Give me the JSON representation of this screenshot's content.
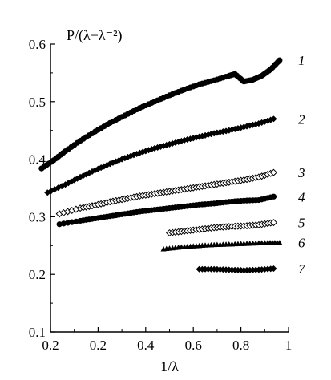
{
  "chart_data": {
    "type": "scatter",
    "ylabel": "P/(λ−λ⁻²)",
    "xlabel": "1/λ",
    "xlim": [
      0.2,
      1.0
    ],
    "ylim": [
      0.1,
      0.6
    ],
    "x_ticks": [
      "0.2",
      "0.2",
      "0.4",
      "0.6",
      "0.8",
      "1"
    ],
    "y_ticks": [
      "0.1",
      "0.2",
      "0.3",
      "0.4",
      "0.5",
      "0.6"
    ],
    "grid": false,
    "legend": "series numbers printed at right end of each curve",
    "series": [
      {
        "name": "1",
        "marker": "circle",
        "x": [
          0.17,
          0.21,
          0.25,
          0.3,
          0.35,
          0.4,
          0.45,
          0.5,
          0.55,
          0.6,
          0.65,
          0.7,
          0.75,
          0.8,
          0.82,
          0.85,
          0.88,
          0.91,
          0.94,
          0.97
        ],
        "y": [
          0.384,
          0.398,
          0.414,
          0.432,
          0.448,
          0.463,
          0.476,
          0.489,
          0.5,
          0.511,
          0.521,
          0.53,
          0.537,
          0.545,
          0.548,
          0.535,
          0.538,
          0.545,
          0.556,
          0.572
        ]
      },
      {
        "name": "2",
        "marker": "diamond",
        "x": [
          0.19,
          0.25,
          0.3,
          0.35,
          0.4,
          0.45,
          0.5,
          0.55,
          0.6,
          0.65,
          0.7,
          0.75,
          0.8,
          0.85,
          0.9,
          0.95
        ],
        "y": [
          0.342,
          0.356,
          0.369,
          0.381,
          0.392,
          0.402,
          0.411,
          0.419,
          0.426,
          0.433,
          0.439,
          0.445,
          0.45,
          0.456,
          0.462,
          0.47
        ]
      },
      {
        "name": "3",
        "marker": "open-diamond",
        "x": [
          0.23,
          0.3,
          0.35,
          0.4,
          0.45,
          0.5,
          0.55,
          0.6,
          0.65,
          0.7,
          0.75,
          0.8,
          0.85,
          0.9,
          0.95
        ],
        "y": [
          0.305,
          0.315,
          0.32,
          0.326,
          0.331,
          0.336,
          0.34,
          0.344,
          0.348,
          0.352,
          0.356,
          0.36,
          0.364,
          0.369,
          0.377
        ]
      },
      {
        "name": "4",
        "marker": "circle",
        "x": [
          0.23,
          0.3,
          0.35,
          0.4,
          0.45,
          0.5,
          0.55,
          0.6,
          0.65,
          0.7,
          0.75,
          0.8,
          0.85,
          0.9,
          0.95
        ],
        "y": [
          0.287,
          0.293,
          0.297,
          0.301,
          0.305,
          0.309,
          0.312,
          0.315,
          0.318,
          0.321,
          0.323,
          0.326,
          0.328,
          0.329,
          0.335
        ]
      },
      {
        "name": "5",
        "marker": "open-diamond",
        "x": [
          0.6,
          0.65,
          0.7,
          0.75,
          0.8,
          0.85,
          0.9,
          0.95
        ],
        "y": [
          0.272,
          0.275,
          0.278,
          0.281,
          0.283,
          0.284,
          0.286,
          0.29
        ]
      },
      {
        "name": "6",
        "marker": "triangle",
        "x": [
          0.58,
          0.63,
          0.68,
          0.73,
          0.78,
          0.83,
          0.88,
          0.93,
          0.97
        ],
        "y": [
          0.244,
          0.247,
          0.249,
          0.251,
          0.252,
          0.253,
          0.254,
          0.255,
          0.255
        ]
      },
      {
        "name": "7",
        "marker": "diamond",
        "x": [
          0.7,
          0.75,
          0.8,
          0.85,
          0.9,
          0.95
        ],
        "y": [
          0.209,
          0.209,
          0.208,
          0.207,
          0.208,
          0.21
        ]
      }
    ]
  }
}
